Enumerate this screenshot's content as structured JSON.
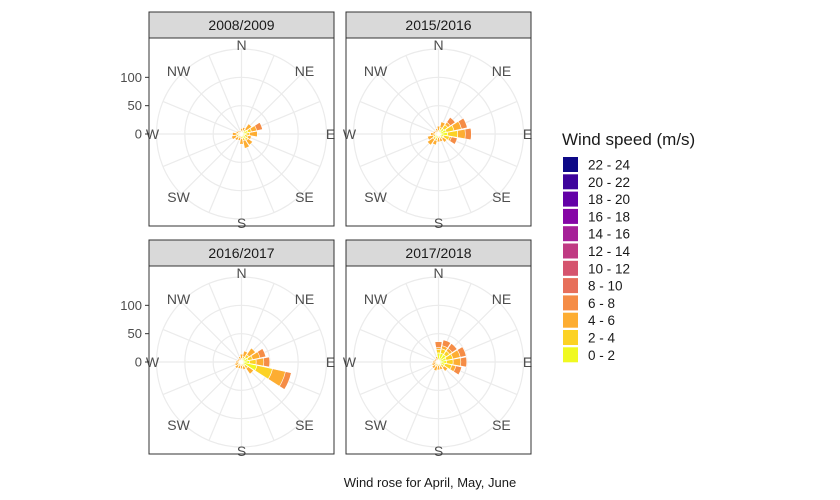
{
  "caption": "Wind rose for April, May, June",
  "chart_data": {
    "type": "windrose",
    "facets": [
      "2008/2009",
      "2015/2016",
      "2016/2017",
      "2017/2018"
    ],
    "directions": [
      "N",
      "NE",
      "E",
      "SE",
      "S",
      "SW",
      "W",
      "NW"
    ],
    "sectors_deg": [
      0,
      22.5,
      45,
      67.5,
      90,
      112.5,
      135,
      157.5,
      180,
      202.5,
      225,
      247.5,
      270,
      292.5,
      315,
      337.5
    ],
    "radial_axis": {
      "ticks": [
        0,
        50,
        100
      ],
      "max": 150
    },
    "legend": {
      "title": "Wind speed (m/s)",
      "bins": [
        "22 - 24",
        "20 - 22",
        "18 - 20",
        "16 - 18",
        "14 - 16",
        "12 - 14",
        "10 - 12",
        "8 - 10",
        "6 - 8",
        "4 - 6",
        "2 - 4",
        "0 - 2"
      ],
      "colors": [
        "#0d0887",
        "#3e049c",
        "#6300a7",
        "#8606a6",
        "#a62098",
        "#c03a83",
        "#d5546e",
        "#e76f5a",
        "#f58c46",
        "#fdad32",
        "#fcd225",
        "#f0f921"
      ]
    },
    "series": [
      {
        "facet": "2008/2009",
        "stacks": [
          [
            10,
            4,
            0
          ],
          [
            12,
            6,
            0
          ],
          [
            22,
            10,
            6
          ],
          [
            38,
            18,
            12
          ],
          [
            28,
            14,
            8
          ],
          [
            18,
            12,
            6
          ],
          [
            24,
            14,
            10
          ],
          [
            26,
            12,
            8
          ],
          [
            18,
            8,
            4
          ],
          [
            12,
            6,
            0
          ],
          [
            14,
            8,
            4
          ],
          [
            18,
            10,
            6
          ],
          [
            16,
            8,
            4
          ],
          [
            10,
            6,
            0
          ],
          [
            8,
            4,
            0
          ],
          [
            6,
            2,
            0
          ]
        ]
      },
      {
        "facet": "2015/2016",
        "stacks": [
          [
            14,
            6,
            4
          ],
          [
            22,
            12,
            8
          ],
          [
            36,
            20,
            12
          ],
          [
            52,
            28,
            14
          ],
          [
            58,
            34,
            16
          ],
          [
            34,
            20,
            10
          ],
          [
            18,
            10,
            6
          ],
          [
            14,
            8,
            4
          ],
          [
            14,
            6,
            4
          ],
          [
            20,
            12,
            8
          ],
          [
            24,
            12,
            8
          ],
          [
            20,
            10,
            6
          ],
          [
            14,
            6,
            4
          ],
          [
            10,
            6,
            0
          ],
          [
            8,
            4,
            0
          ],
          [
            10,
            4,
            0
          ]
        ]
      },
      {
        "facet": "2016/2017",
        "stacks": [
          [
            14,
            6,
            4
          ],
          [
            20,
            10,
            6
          ],
          [
            30,
            16,
            10
          ],
          [
            44,
            20,
            12
          ],
          [
            50,
            26,
            14
          ],
          [
            90,
            56,
            28
          ],
          [
            26,
            14,
            8
          ],
          [
            14,
            8,
            4
          ],
          [
            12,
            6,
            0
          ],
          [
            12,
            6,
            4
          ],
          [
            14,
            8,
            4
          ],
          [
            12,
            6,
            4
          ],
          [
            10,
            4,
            0
          ],
          [
            8,
            4,
            0
          ],
          [
            8,
            4,
            0
          ],
          [
            10,
            4,
            0
          ]
        ]
      },
      {
        "facet": "2017/2018",
        "stacks": [
          [
            36,
            22,
            16
          ],
          [
            40,
            24,
            16
          ],
          [
            40,
            24,
            16
          ],
          [
            50,
            26,
            14
          ],
          [
            50,
            26,
            14
          ],
          [
            42,
            24,
            12
          ],
          [
            20,
            12,
            6
          ],
          [
            14,
            8,
            4
          ],
          [
            14,
            6,
            4
          ],
          [
            16,
            8,
            4
          ],
          [
            14,
            8,
            4
          ],
          [
            12,
            6,
            0
          ],
          [
            10,
            4,
            0
          ],
          [
            8,
            4,
            0
          ],
          [
            8,
            4,
            0
          ],
          [
            10,
            4,
            0
          ]
        ]
      }
    ]
  }
}
